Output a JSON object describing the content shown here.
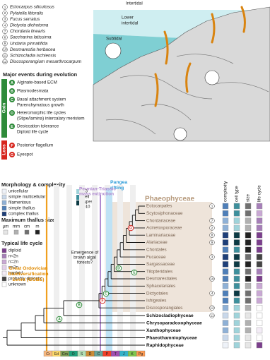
{
  "species": [
    {
      "num": "1",
      "name": "Ectocarpus siliculosus"
    },
    {
      "num": "2",
      "name": "Pylaiella littoralis"
    },
    {
      "num": "3",
      "name": "Fucus serratus"
    },
    {
      "num": "4",
      "name": "Dictyota dichotoma"
    },
    {
      "num": "7",
      "name": "Chordaria linearis"
    },
    {
      "num": "8",
      "name": "Saccharina latissima"
    },
    {
      "num": "9",
      "name": "Undaria pinnatifida"
    },
    {
      "num": "10",
      "name": "Desmarestia herbacea"
    },
    {
      "num": "11",
      "name": "Schizocladia ischiensis"
    },
    {
      "num": "12",
      "name": "Discosporangium mesarthrocarpum"
    }
  ],
  "zones": {
    "top": "Intertidal",
    "lower": [
      "Lower",
      "intertidal"
    ],
    "sub": "Subtidal"
  },
  "events": {
    "title": "Major events during evolution",
    "gain": "Gain",
    "loss": "Loss",
    "gain_color": "#2e8b3a",
    "loss_color": "#d7261e",
    "items": [
      {
        "key": "A",
        "lines": [
          "Alginate-based ECM"
        ]
      },
      {
        "key": "B",
        "lines": [
          "Plasmodesmata"
        ]
      },
      {
        "key": "C",
        "lines": [
          "Basal attachment system",
          "Parenchymatous growth"
        ]
      },
      {
        "key": "D",
        "lines": [
          "Heteromorphic life cycles",
          "(Stipe/lamina) intercalary meristem"
        ]
      },
      {
        "key": "E",
        "lines": [
          "Desiccation tolerance",
          "Diploid life cycle"
        ]
      },
      {
        "key": "F",
        "lines": [
          "Posterior flagellum"
        ]
      },
      {
        "key": "G",
        "lines": [
          "Eyespot"
        ]
      }
    ]
  },
  "legend": {
    "morphology": {
      "title": "Morphology & complexity",
      "items": [
        {
          "label": "unicellular",
          "color": "#eef2f8"
        },
        {
          "label": "simple multicellular",
          "color": "#c9d8ea"
        },
        {
          "label": "filamentous",
          "color": "#8fb1d6"
        },
        {
          "label": "simple thallus",
          "color": "#4f7fb8"
        },
        {
          "label": "complex thallus",
          "color": "#1e3f78"
        }
      ],
      "cell_types": {
        "low": "<3",
        "label": [
          "cell",
          "types"
        ],
        "high": ">10",
        "colors": [
          "#9fd3da",
          "#3d8f9c",
          "#0d3a44"
        ]
      }
    },
    "size": {
      "title": "Maximum thallus size",
      "units": [
        {
          "label": "µm",
          "color": "#e6e6e6"
        },
        {
          "label": "mm",
          "color": "#b0b0b0"
        },
        {
          "label": "cm",
          "color": "#707070"
        },
        {
          "label": "m",
          "color": "#222222"
        }
      ]
    },
    "life_cycle": {
      "title": "Typical life cycle",
      "items": [
        {
          "label": "diploid",
          "color": "#7b3f8c"
        },
        {
          "label": "n≈2n",
          "color": "#a67fb8"
        },
        {
          "label": "n=2n",
          "color": "#c9a8d4"
        },
        {
          "label": "n>2n",
          "color": "#e3d0ea"
        },
        {
          "label": "haploid",
          "color": "#f3ecf6"
        },
        {
          "label": "probably diplontic",
          "color": "#444444"
        },
        {
          "label": "unknown",
          "color": "#ffffff"
        }
      ]
    }
  },
  "annotations": {
    "gobe": [
      "Great Ordovician",
      "Biodiversification",
      "Event (GOBE)"
    ],
    "pangea": [
      "Pangea",
      "rifting"
    ],
    "permian": [
      "Permian-Triassic",
      "mass extinction"
    ],
    "forests": [
      "Emergence of",
      "brown algal",
      "forests?"
    ]
  },
  "clade": "Phaeophyceae",
  "columns": [
    "complexity",
    "cell type",
    "size",
    "life cycle"
  ],
  "taxa": [
    {
      "name": "Ectocarpales",
      "num": "1",
      "traits": [
        "#4f7fb8",
        "#3d8f9c",
        "#707070",
        "#a67fb8"
      ]
    },
    {
      "name": "Scytosiphonaceae",
      "num": null,
      "traits": [
        "#4f7fb8",
        "#3d8f9c",
        "#707070",
        "#c9a8d4"
      ]
    },
    {
      "name": "Chordariaceae",
      "num": "7",
      "traits": [
        "#8fb1d6",
        "#9fd3da",
        "#b0b0b0",
        "#a67fb8"
      ]
    },
    {
      "name": "Acinetosporaceae",
      "num": "2",
      "traits": [
        "#8fb1d6",
        "#9fd3da",
        "#b0b0b0",
        "#a67fb8"
      ]
    },
    {
      "name": "Laminariaceae",
      "num": "8",
      "traits": [
        "#1e3f78",
        "#0d3a44",
        "#222222",
        "#7b3f8c"
      ]
    },
    {
      "name": "Alariaceae",
      "num": "9",
      "traits": [
        "#1e3f78",
        "#0d3a44",
        "#222222",
        "#7b3f8c"
      ]
    },
    {
      "name": "Chordales",
      "num": null,
      "traits": [
        "#4f7fb8",
        "#3d8f9c",
        "#222222",
        "#7b3f8c"
      ]
    },
    {
      "name": "Fucaceae",
      "num": "3",
      "traits": [
        "#1e3f78",
        "#0d3a44",
        "#707070",
        "#444444"
      ]
    },
    {
      "name": "Sargassaceae",
      "num": null,
      "traits": [
        "#1e3f78",
        "#0d3a44",
        "#222222",
        "#444444"
      ]
    },
    {
      "name": "Tilopteridales",
      "num": null,
      "traits": [
        "#4f7fb8",
        "#3d8f9c",
        "#707070",
        "#a67fb8"
      ]
    },
    {
      "name": "Desmarestiales",
      "num": "10",
      "traits": [
        "#4f7fb8",
        "#3d8f9c",
        "#222222",
        "#7b3f8c"
      ]
    },
    {
      "name": "Sphacelariales",
      "num": null,
      "traits": [
        "#8fb1d6",
        "#3d8f9c",
        "#b0b0b0",
        "#c9a8d4"
      ]
    },
    {
      "name": "Dictyotales",
      "num": "4",
      "traits": [
        "#4f7fb8",
        "#0d3a44",
        "#707070",
        "#c9a8d4"
      ]
    },
    {
      "name": "Ishigeales",
      "num": null,
      "traits": [
        "#4f7fb8",
        "#3d8f9c",
        "#707070",
        "#c9a8d4"
      ]
    },
    {
      "name": "Discosporangiales",
      "num": "12",
      "traits": [
        "#8fb1d6",
        "#9fd3da",
        "#b0b0b0",
        "#ffffff"
      ]
    },
    {
      "name": "Schizocladiophyceae",
      "num": "11",
      "traits": [
        "#c9d8ea",
        "#9fd3da",
        "#e6e6e6",
        "#ffffff"
      ]
    },
    {
      "name": "Chrysoparadoxophyceae",
      "num": null,
      "traits": [
        "#8fb1d6",
        "#9fd3da",
        "#b0b0b0",
        "#ffffff"
      ]
    },
    {
      "name": "Xanthophyceae",
      "num": null,
      "traits": [
        "#8fb1d6",
        "#9fd3da",
        "#b0b0b0",
        "#f3ecf6"
      ]
    },
    {
      "name": "Phaeothamniophyceae",
      "num": null,
      "traits": [
        "#c9d8ea",
        "#9fd3da",
        "#e6e6e6",
        "#ffffff"
      ]
    },
    {
      "name": "Raphidophyceae",
      "num": null,
      "traits": [
        "#eef2f8",
        "#9fd3da",
        "#e6e6e6",
        "#7b3f8c"
      ]
    }
  ],
  "periods": [
    {
      "label": "Cr",
      "color": "#f9b97f"
    },
    {
      "label": "Ed",
      "color": "#fed96a"
    },
    {
      "label": "Cm",
      "color": "#7fa056"
    },
    {
      "label": "O",
      "color": "#1fa07a"
    },
    {
      "label": "S",
      "color": "#b3e1b6"
    },
    {
      "label": "D",
      "color": "#cb8c37"
    },
    {
      "label": "C",
      "color": "#67a599"
    },
    {
      "label": "P",
      "color": "#f04028"
    },
    {
      "label": "T",
      "color": "#a04fb0"
    },
    {
      "label": "J",
      "color": "#34b2c9"
    },
    {
      "label": "K",
      "color": "#7fc64e"
    },
    {
      "label": "Pg",
      "color": "#fd9a52"
    }
  ]
}
